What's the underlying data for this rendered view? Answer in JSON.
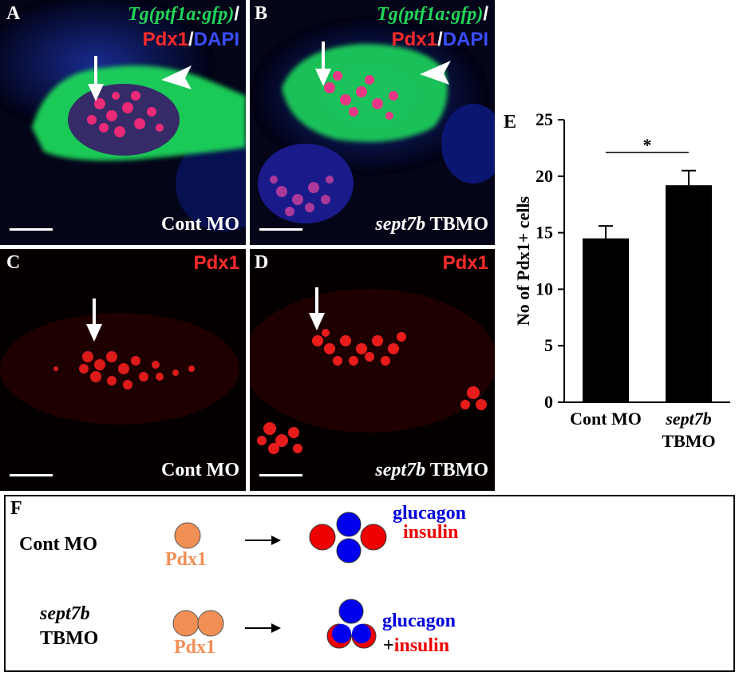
{
  "panels": {
    "A": {
      "label": "A",
      "title_gene": "Tg(ptf1a:gfp)",
      "slash": "/",
      "pdx": "Pdx1",
      "slash2": "/",
      "dapi": "DAPI",
      "condition": "Cont MO"
    },
    "B": {
      "label": "B",
      "title_gene": "Tg(ptf1a:gfp)",
      "slash": "/",
      "pdx": "Pdx1",
      "slash2": "/",
      "dapi": "DAPI",
      "condition_gene": "sept7b",
      "condition_rest": " TBMO"
    },
    "C": {
      "label": "C",
      "pdx": "Pdx1",
      "condition": "Cont MO"
    },
    "D": {
      "label": "D",
      "pdx": "Pdx1",
      "condition_gene": "sept7b",
      "condition_rest": " TBMO"
    },
    "E": {
      "label": "E"
    },
    "F": {
      "label": "F"
    }
  },
  "colors": {
    "gfp": "#1fd65a",
    "pdx1": "#ff2a2a",
    "dapi": "#3a4dff",
    "orange": "#f28f55",
    "glucagon": "#0000dd",
    "insulin": "#ee0000"
  },
  "chart_data": {
    "type": "bar",
    "categories": [
      "Cont MO",
      "sept7b TBMO"
    ],
    "category_lines": [
      [
        "Cont MO"
      ],
      [
        "sept7b",
        "TBMO"
      ]
    ],
    "values": [
      14.5,
      19.2
    ],
    "errors": [
      1.1,
      1.3
    ],
    "ylabel": "No of Pdx1+ cells",
    "xlabel": "",
    "ylim": [
      0,
      25
    ],
    "yticks": [
      0,
      5,
      10,
      15,
      20,
      25
    ],
    "significance": "*",
    "grid": false
  },
  "schematic": {
    "row1": {
      "condition": "Cont MO",
      "progenitor_label": "Pdx1",
      "glucagon": "glucagon",
      "insulin": "insulin"
    },
    "row2": {
      "condition_gene": "sept7b",
      "condition_rest": "TBMO",
      "progenitor_label": "Pdx1",
      "glucagon": "glucagon",
      "plus": "+",
      "insulin": "insulin"
    }
  }
}
